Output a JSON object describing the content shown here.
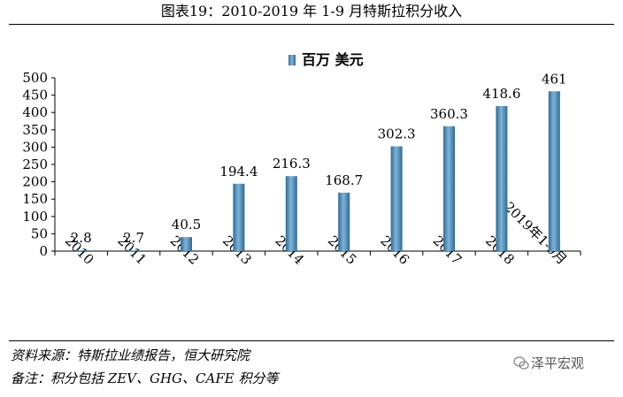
{
  "title": "图表19：2010-2019 年 1-9 月特斯拉积分收入",
  "chart_data": {
    "type": "bar",
    "categories": [
      "2010",
      "2011",
      "2012",
      "2013",
      "2014",
      "2015",
      "2016",
      "2017",
      "2018",
      "2019年1-9月"
    ],
    "series": [
      {
        "name": "百万 美元",
        "values": [
          2.8,
          2.7,
          40.5,
          194.4,
          216.3,
          168.7,
          302.3,
          360.3,
          418.6,
          461
        ]
      }
    ],
    "value_labels": [
      "2.8",
      "2.7",
      "40.5",
      "194.4",
      "216.3",
      "168.7",
      "302.3",
      "360.3",
      "418.6",
      "461"
    ],
    "y_ticks": [
      "0",
      "50",
      "100",
      "150",
      "200",
      "250",
      "300",
      "350",
      "400",
      "450",
      "500"
    ],
    "ylim": [
      0,
      500
    ],
    "legend_position": "top-center",
    "grid": false,
    "bar_color": "#4A86B2"
  },
  "source": "资料来源：特斯拉业绩报告，恒大研究院",
  "note": "备注：积分包括 ZEV、GHG、CAFE 积分等",
  "watermark": "泽平宏观"
}
